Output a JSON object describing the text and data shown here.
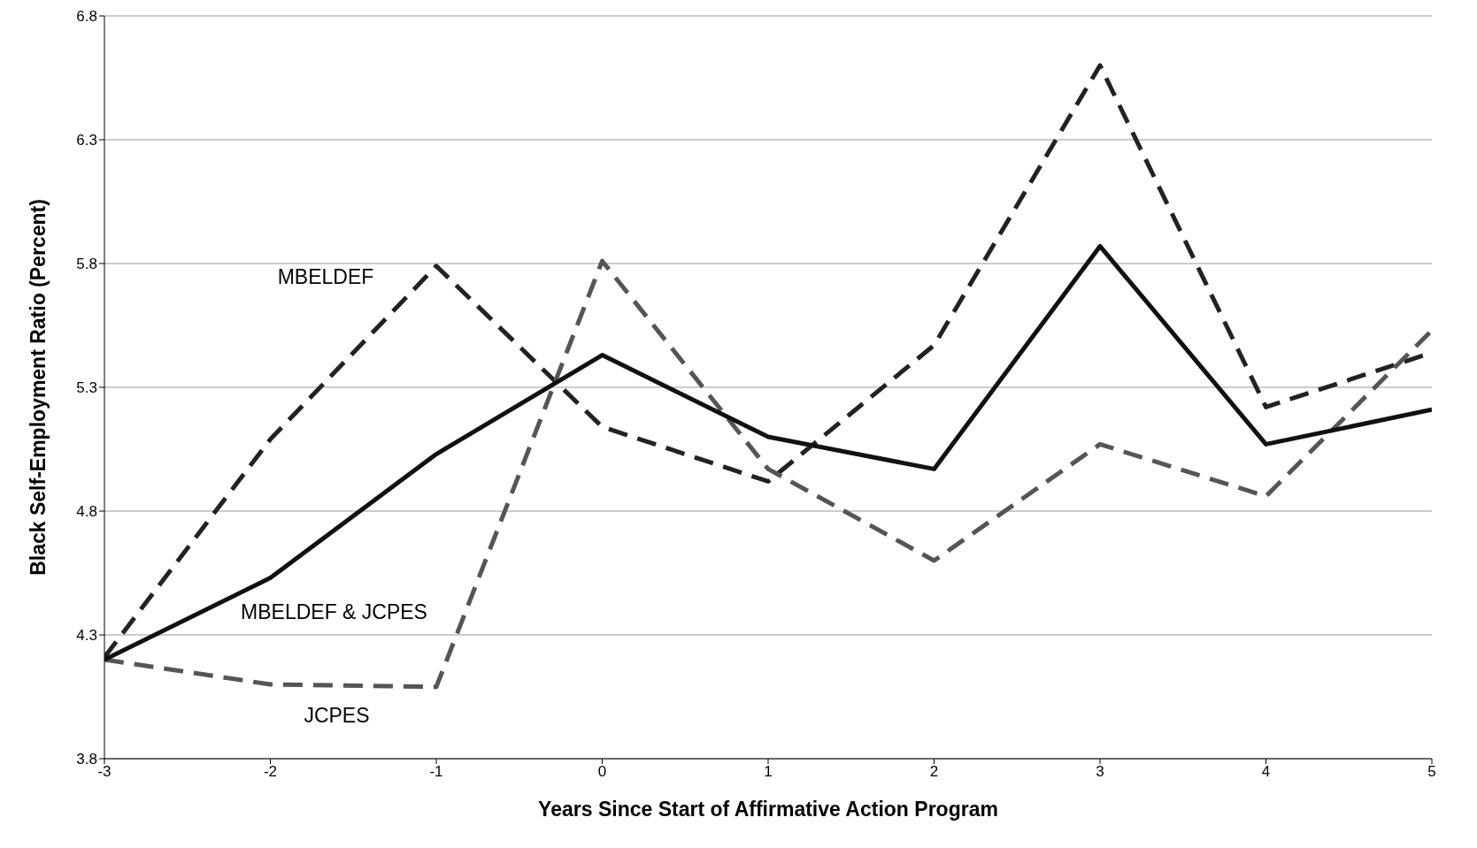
{
  "chart_data": {
    "type": "line",
    "xlabel": "Years Since Start of Affirmative Action Program",
    "ylabel": "Black Self-Employment Ratio (Percent)",
    "x": [
      -3,
      -2,
      -1,
      0,
      1,
      2,
      3,
      4,
      5
    ],
    "series": [
      {
        "name": "MBELDEF",
        "color": "#222222",
        "line_style": "dashed",
        "values": [
          4.21,
          5.09,
          5.79,
          5.14,
          4.92,
          5.47,
          6.6,
          5.22,
          5.44
        ]
      },
      {
        "name": "JCPES",
        "color": "#555555",
        "line_style": "dashed",
        "values": [
          4.2,
          4.1,
          4.09,
          5.81,
          4.97,
          4.6,
          5.07,
          4.86,
          5.53
        ]
      },
      {
        "name": "MBELDEF & JCPES",
        "color": "#111111",
        "line_style": "solid",
        "values": [
          4.2,
          4.53,
          5.03,
          5.43,
          5.1,
          4.97,
          5.87,
          5.07,
          5.21
        ]
      }
    ],
    "xlim": [
      -3,
      5
    ],
    "xticks": [
      -3,
      -2,
      -1,
      0,
      1,
      2,
      3,
      4,
      5
    ],
    "ylim": [
      3.8,
      6.8
    ],
    "yticks": [
      3.8,
      4.3,
      4.8,
      5.3,
      5.8,
      6.3,
      6.8
    ],
    "grid": "y",
    "marker": "none",
    "legend": false
  }
}
